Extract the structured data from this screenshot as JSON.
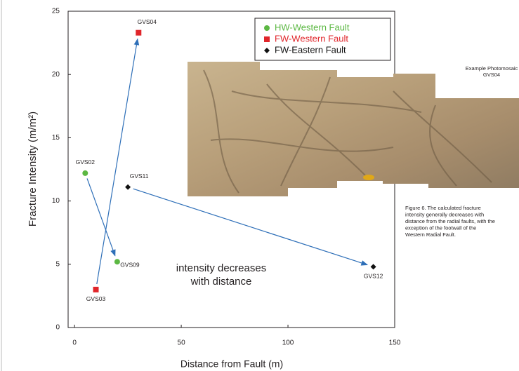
{
  "chart_data": {
    "type": "scatter",
    "x_label": "Distance from Fault (m)",
    "y_label": "Fracture Intensity  (m/m²)",
    "xlim": [
      -3,
      150
    ],
    "xticks": [
      0,
      50,
      100,
      150
    ],
    "ylim": [
      0,
      25
    ],
    "yticks": [
      0,
      5,
      10,
      15,
      20,
      25
    ],
    "series": [
      {
        "name": "HW-Western Fault",
        "color": "#5cb843",
        "marker": "circle",
        "x": [
          5,
          20
        ],
        "values": [
          12.2,
          5.2
        ],
        "labels": [
          "GVS02",
          "GVS09"
        ]
      },
      {
        "name": "FW-Western Fault",
        "color": "#e0262b",
        "marker": "square",
        "x": [
          10,
          30
        ],
        "values": [
          3.0,
          23.3
        ],
        "labels": [
          "GVS03",
          "GVS04"
        ]
      },
      {
        "name": "FW-Eastern Fault",
        "color": "#111111",
        "marker": "diamond",
        "x": [
          25,
          140
        ],
        "values": [
          11.1,
          4.8
        ],
        "labels": [
          "GVS11",
          "GVS12"
        ]
      }
    ],
    "legend": "top-right",
    "annotation": [
      "intensity decreases",
      "with distance"
    ]
  },
  "photo": {
    "label": [
      "Example Photomosaic",
      "GVS04"
    ]
  },
  "caption": [
    "Figure 6. The calculated fracture",
    "intensity generally decreases with",
    "distance from the radial faults, with the",
    "exception of the footwall of the",
    "Western Radial Fault."
  ]
}
